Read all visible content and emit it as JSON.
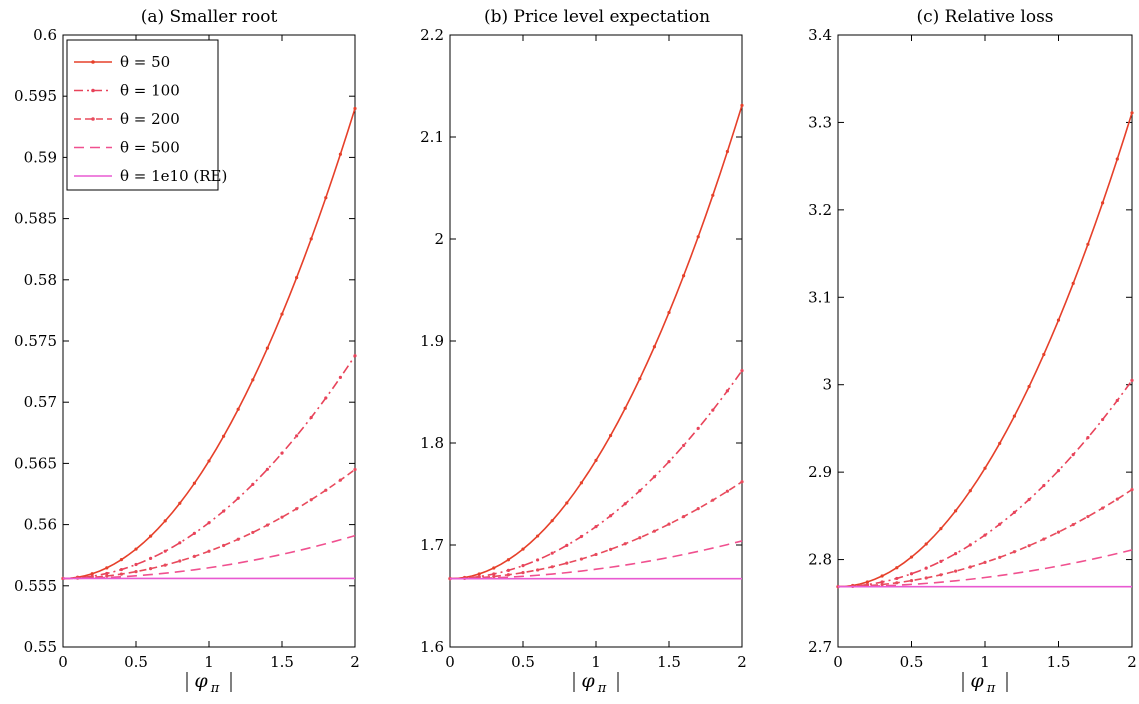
{
  "chart_data": [
    {
      "type": "line",
      "title": "(a) Smaller root",
      "xlabel": "|φπ|",
      "ylabel": "",
      "xlim": [
        0,
        2
      ],
      "ylim": [
        0.55,
        0.6
      ],
      "xticks": [
        0,
        0.5,
        1,
        1.5,
        2
      ],
      "xtick_labels": [
        "0",
        "0.5",
        "1",
        "1.5",
        "2"
      ],
      "yticks": [
        0.55,
        0.555,
        0.56,
        0.565,
        0.57,
        0.575,
        0.58,
        0.585,
        0.59,
        0.595,
        0.6
      ],
      "ytick_labels": [
        "0.55",
        "0.555",
        "0.56",
        "0.565",
        "0.57",
        "0.575",
        "0.58",
        "0.585",
        "0.59",
        "0.595",
        "0.6"
      ],
      "legend_position": "top-left",
      "series": [
        {
          "name": "θ = 50",
          "base": 0.5556,
          "end": 0.594
        },
        {
          "name": "θ = 100",
          "base": 0.5556,
          "end": 0.5738
        },
        {
          "name": "θ = 200",
          "base": 0.5556,
          "end": 0.5645
        },
        {
          "name": "θ = 500",
          "base": 0.5556,
          "end": 0.5591
        },
        {
          "name": "θ = 1e10 (RE)",
          "base": 0.5556,
          "end": 0.5556
        }
      ]
    },
    {
      "type": "line",
      "title": "(b) Price level expectation",
      "xlabel": "|φπ|",
      "ylabel": "",
      "xlim": [
        0,
        2
      ],
      "ylim": [
        1.6,
        2.2
      ],
      "xticks": [
        0,
        0.5,
        1,
        1.5,
        2
      ],
      "xtick_labels": [
        "0",
        "0.5",
        "1",
        "1.5",
        "2"
      ],
      "yticks": [
        1.6,
        1.7,
        1.8,
        1.9,
        2.0,
        2.1,
        2.2
      ],
      "ytick_labels": [
        "1.6",
        "1.7",
        "1.8",
        "1.9",
        "2",
        "2.1",
        "2.2"
      ],
      "series": [
        {
          "name": "θ = 50",
          "base": 1.667,
          "end": 2.131
        },
        {
          "name": "θ = 100",
          "base": 1.667,
          "end": 1.871
        },
        {
          "name": "θ = 200",
          "base": 1.667,
          "end": 1.762
        },
        {
          "name": "θ = 500",
          "base": 1.667,
          "end": 1.704
        },
        {
          "name": "θ = 1e10 (RE)",
          "base": 1.667,
          "end": 1.667
        }
      ]
    },
    {
      "type": "line",
      "title": "(c) Relative loss",
      "xlabel": "|φπ|",
      "ylabel": "",
      "xlim": [
        0,
        2
      ],
      "ylim": [
        2.7,
        3.4
      ],
      "xticks": [
        0,
        0.5,
        1,
        1.5,
        2
      ],
      "xtick_labels": [
        "0",
        "0.5",
        "1",
        "1.5",
        "2"
      ],
      "yticks": [
        2.7,
        2.8,
        2.9,
        3.0,
        3.1,
        3.2,
        3.3,
        3.4
      ],
      "ytick_labels": [
        "2.7",
        "2.8",
        "2.9",
        "3",
        "3.1",
        "3.2",
        "3.3",
        "3.4"
      ],
      "series": [
        {
          "name": "θ = 50",
          "base": 2.769,
          "end": 3.311
        },
        {
          "name": "θ = 100",
          "base": 2.769,
          "end": 3.005
        },
        {
          "name": "θ = 200",
          "base": 2.769,
          "end": 2.88
        },
        {
          "name": "θ = 500",
          "base": 2.769,
          "end": 2.811
        },
        {
          "name": "θ = 1e10 (RE)",
          "base": 2.769,
          "end": 2.769
        }
      ]
    }
  ],
  "styles": [
    {
      "color": "#e6402a",
      "dash": "",
      "marker": true
    },
    {
      "color": "#e8435a",
      "dash": "9 4 2 4",
      "marker": true
    },
    {
      "color": "#e84a5c",
      "dash": "7 4",
      "marker": true
    },
    {
      "color": "#f0508f",
      "dash": "10 6",
      "marker": false
    },
    {
      "color": "#e85ad2",
      "dash": "",
      "marker": false
    }
  ]
}
